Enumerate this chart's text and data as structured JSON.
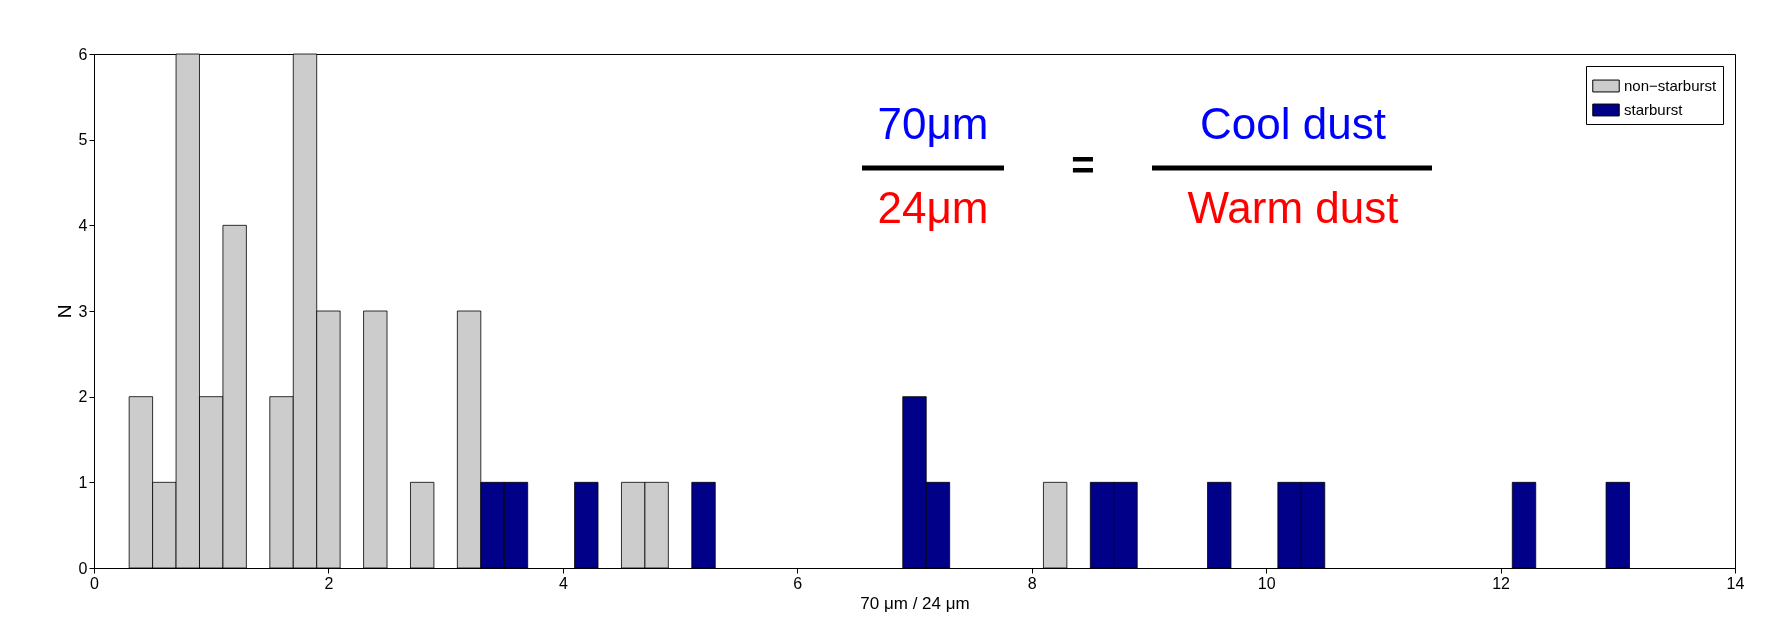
{
  "chart_data": {
    "type": "histogram",
    "xlabel": "70 μm / 24 μm",
    "ylabel": "N",
    "bins": [
      0.3,
      0.5,
      0.7,
      0.9,
      1.1,
      1.3,
      1.5,
      1.7,
      1.9,
      2.1,
      2.3,
      2.5,
      2.7,
      2.9,
      3.1,
      3.3,
      3.5,
      3.7,
      3.9,
      4.1,
      4.3,
      4.5,
      4.7,
      4.9,
      5.1,
      5.3,
      5.5,
      5.7,
      5.9,
      6.1,
      6.3,
      6.5,
      6.7,
      6.9,
      7.1,
      7.3,
      7.5,
      7.7,
      7.9,
      8.1,
      8.3,
      8.5,
      8.7,
      8.9,
      9.1,
      9.3,
      9.5,
      9.7,
      9.9,
      10.1,
      10.3,
      10.5,
      10.7,
      10.9,
      11.1,
      11.3,
      11.5,
      11.7,
      11.9,
      12.1,
      12.3,
      12.5,
      12.7,
      12.9,
      13.1
    ],
    "series": [
      {
        "name": "non−starburst",
        "color": "#cccccc",
        "values": [
          2,
          1,
          6,
          2,
          4,
          0,
          2,
          6,
          3,
          0,
          3,
          0,
          1,
          0,
          3,
          0,
          0,
          0,
          0,
          0,
          0,
          1,
          1,
          0,
          0,
          0,
          0,
          0,
          0,
          0,
          0,
          0,
          0,
          0,
          0,
          0,
          0,
          0,
          0,
          1,
          0,
          0,
          0,
          0,
          0,
          0,
          0,
          0,
          0,
          0,
          0,
          0,
          0,
          0,
          0,
          0,
          0,
          0,
          0,
          0,
          0,
          0,
          0,
          0
        ]
      },
      {
        "name": "starburst",
        "color": "#000088",
        "values": [
          0,
          0,
          0,
          0,
          0,
          0,
          0,
          0,
          0,
          0,
          0,
          0,
          0,
          0,
          0,
          1,
          1,
          0,
          0,
          1,
          0,
          0,
          0,
          0,
          1,
          0,
          0,
          0,
          0,
          0,
          0,
          0,
          0,
          2,
          1,
          0,
          0,
          0,
          0,
          0,
          0,
          1,
          1,
          0,
          0,
          0,
          1,
          0,
          0,
          1,
          1,
          0,
          0,
          0,
          0,
          0,
          0,
          0,
          0,
          1,
          0,
          0,
          0,
          1
        ]
      }
    ],
    "xlim": [
      0,
      14
    ],
    "xticks": [
      0,
      2,
      4,
      6,
      8,
      10,
      12,
      14
    ],
    "ylim": [
      0,
      6
    ],
    "yticks": [
      0,
      1,
      2,
      3,
      4,
      5,
      6
    ],
    "grid": false,
    "legend": "top right",
    "annotations": [
      "70μm",
      "24μm",
      "=",
      "Cool dust",
      "Warm dust"
    ]
  }
}
